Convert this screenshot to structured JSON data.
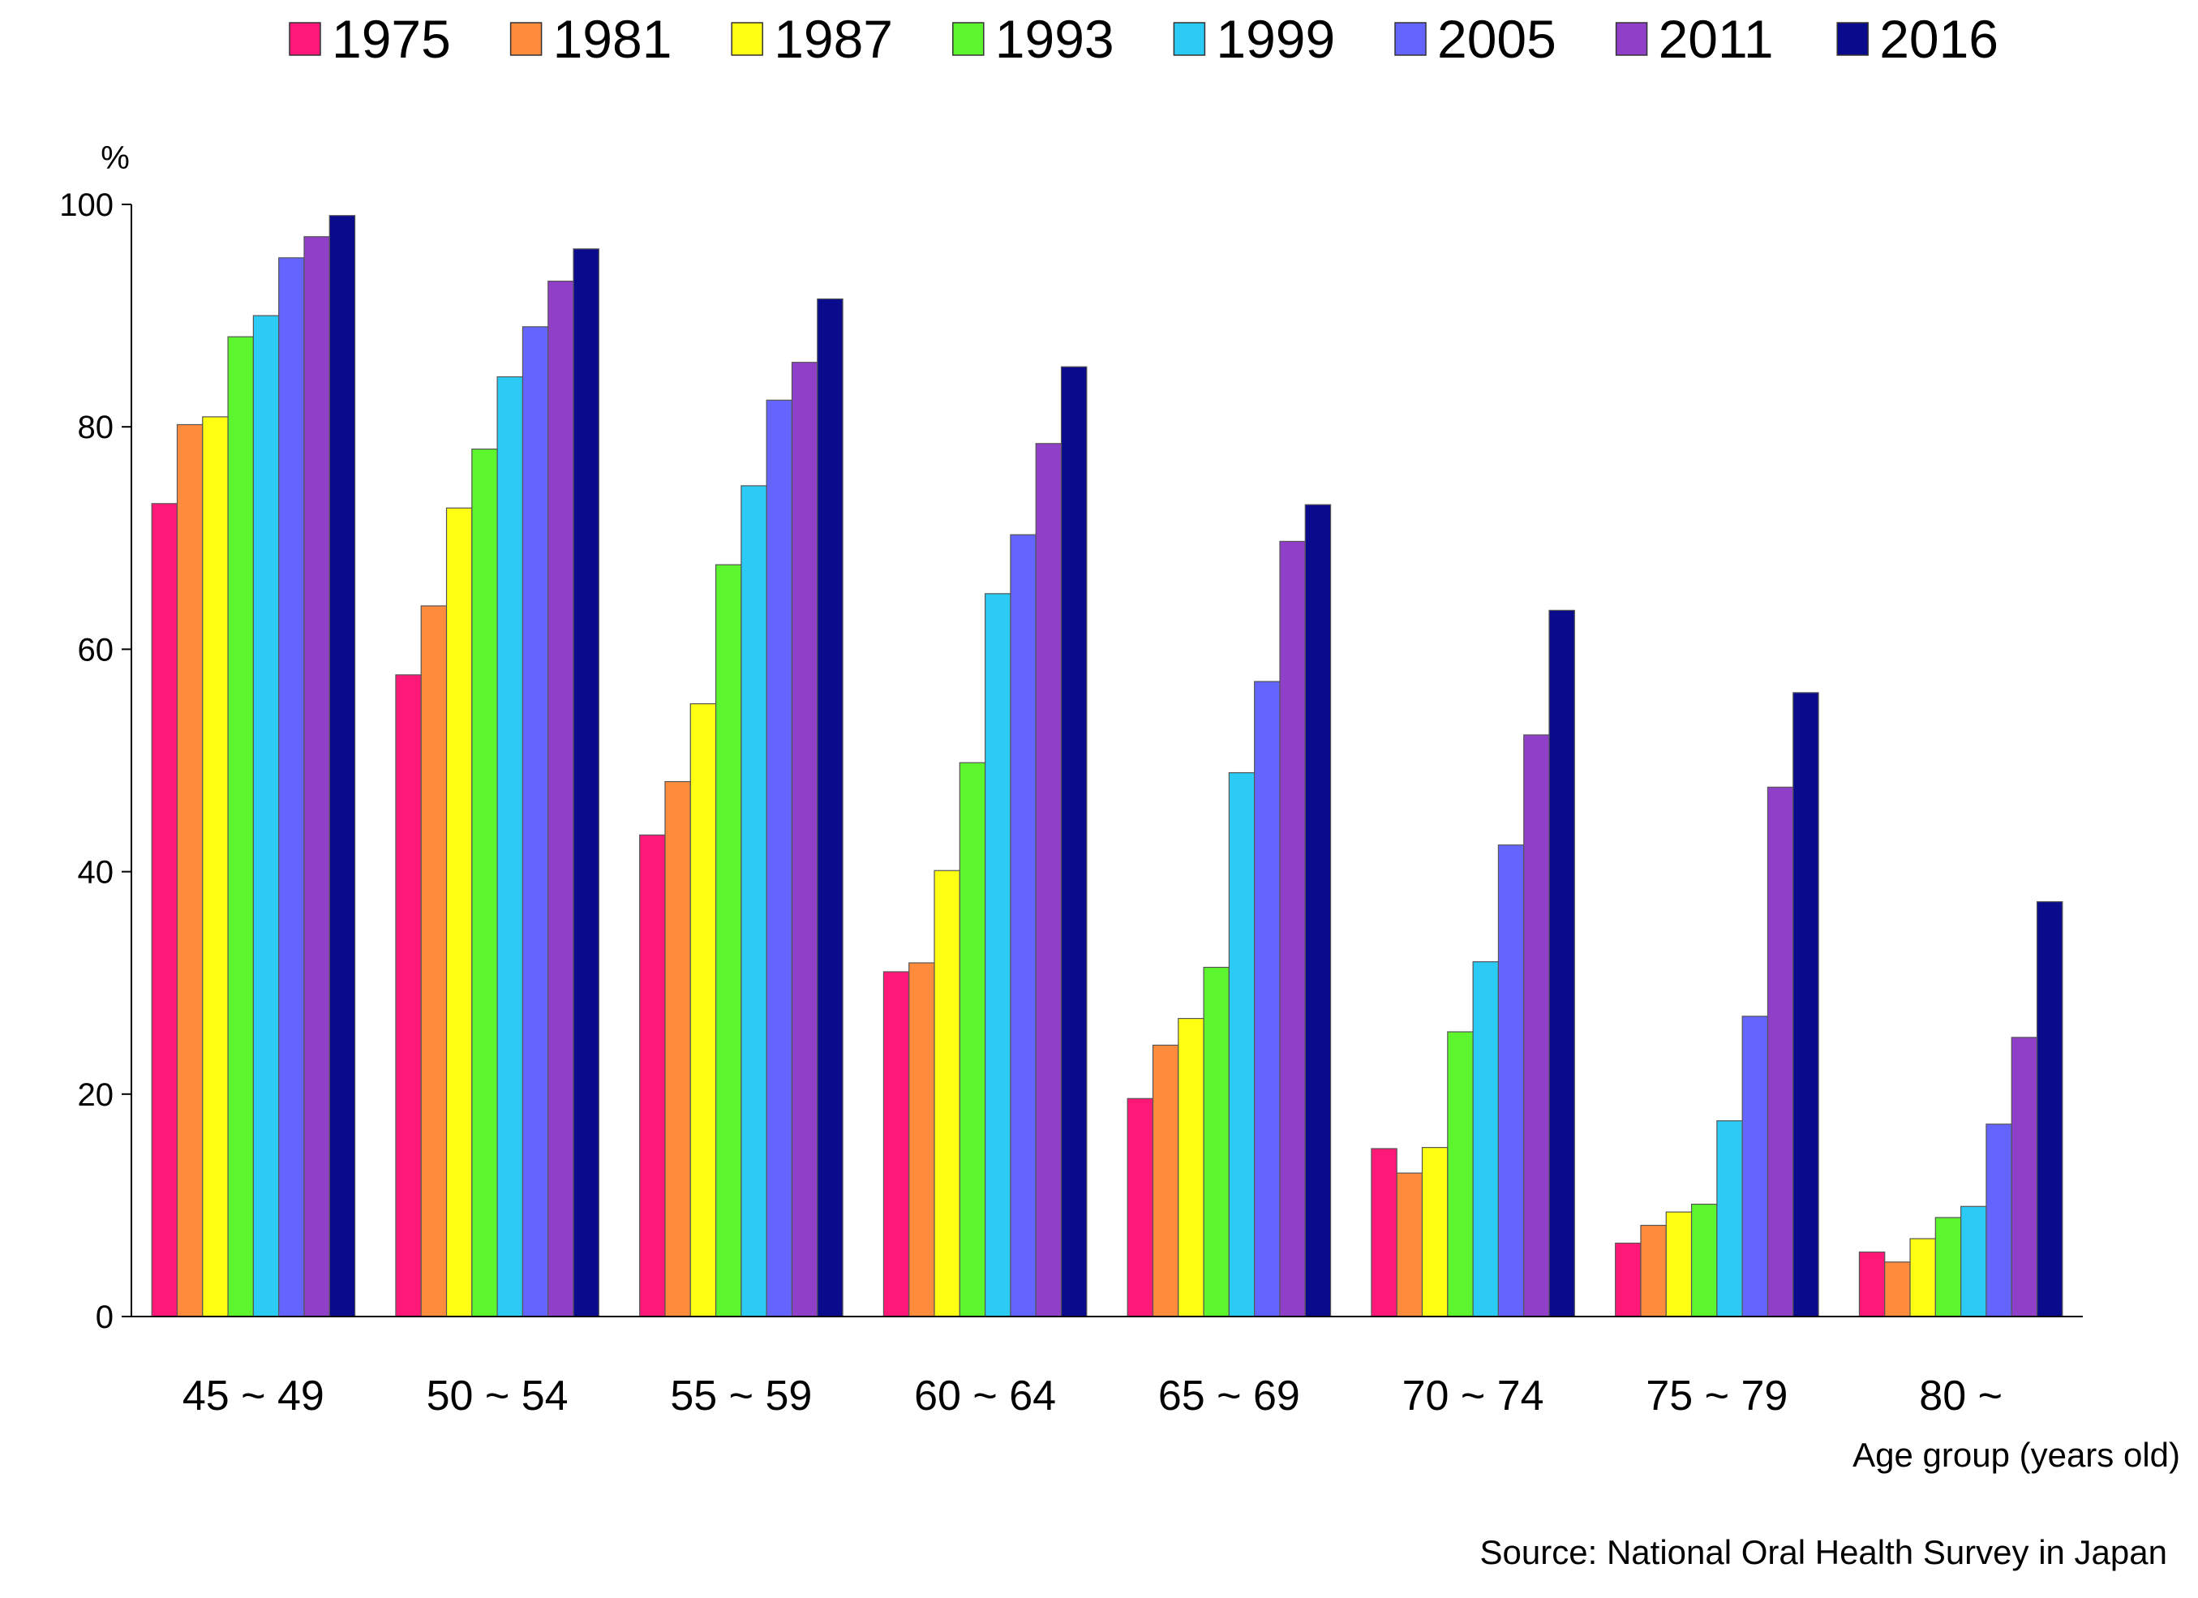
{
  "chart_data": {
    "type": "bar",
    "title": "",
    "ylabel": "%",
    "xlabel": "Age group (years old)",
    "source": "Source: National Oral Health Survey in Japan",
    "categories": [
      "45 ~ 49",
      "50 ~ 54",
      "55 ~ 59",
      "60 ~ 64",
      "65 ~ 69",
      "70 ~ 74",
      "75 ~ 79",
      "80 ~"
    ],
    "ylim": [
      0,
      100
    ],
    "yticks": [
      0,
      20,
      40,
      60,
      80,
      100
    ],
    "grid": false,
    "legend_position": "top",
    "series": [
      {
        "name": "1975",
        "color": "#FF1877",
        "values": [
          73.1,
          57.7,
          43.3,
          31.0,
          19.6,
          15.1,
          6.6,
          5.8
        ]
      },
      {
        "name": "1981",
        "color": "#FF8C3C",
        "values": [
          80.2,
          63.9,
          48.1,
          31.8,
          24.4,
          12.9,
          8.2,
          4.9
        ]
      },
      {
        "name": "1987",
        "color": "#FFFF14",
        "values": [
          80.9,
          72.7,
          55.1,
          40.1,
          26.8,
          15.2,
          9.4,
          7.0
        ]
      },
      {
        "name": "1993",
        "color": "#5CF52E",
        "values": [
          88.1,
          78.0,
          67.6,
          49.8,
          31.4,
          25.6,
          10.1,
          8.9
        ]
      },
      {
        "name": "1999",
        "color": "#2BCBF5",
        "values": [
          90.0,
          84.5,
          74.7,
          65.0,
          48.9,
          31.9,
          17.6,
          9.9
        ]
      },
      {
        "name": "2005",
        "color": "#6464FF",
        "values": [
          95.2,
          89.0,
          82.4,
          70.3,
          57.1,
          42.4,
          27.0,
          17.3
        ]
      },
      {
        "name": "2011",
        "color": "#8F3FC8",
        "values": [
          97.1,
          93.1,
          85.8,
          78.5,
          69.7,
          52.3,
          47.6,
          25.1
        ]
      },
      {
        "name": "2016",
        "color": "#0A0A8C",
        "values": [
          99.0,
          96.0,
          91.5,
          85.4,
          73.0,
          63.5,
          56.1,
          37.3
        ]
      }
    ]
  }
}
